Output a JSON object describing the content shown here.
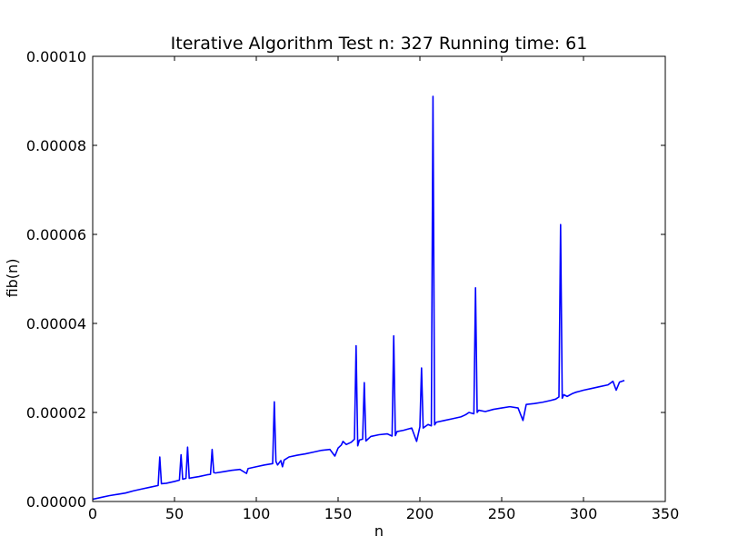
{
  "chart_data": {
    "type": "line",
    "title": "Iterative Algorithm Test n: 327 Running time: 61",
    "xlabel": "n",
    "ylabel": "fib(n)",
    "xlim": [
      0,
      350
    ],
    "ylim": [
      0,
      0.0001
    ],
    "x_ticks": [
      "0",
      "50",
      "100",
      "150",
      "200",
      "250",
      "300",
      "350"
    ],
    "y_ticks": [
      "0.00000",
      "0.00002",
      "0.00004",
      "0.00006",
      "0.00008",
      "0.00010"
    ],
    "grid": false,
    "legend": "none",
    "series": [
      {
        "color": "#0000ff",
        "x": [
          0,
          5,
          10,
          15,
          20,
          25,
          30,
          35,
          40,
          41,
          42,
          45,
          50,
          53,
          54,
          55,
          57,
          58,
          59,
          60,
          65,
          70,
          72,
          73,
          74,
          75,
          80,
          85,
          90,
          94,
          95,
          100,
          105,
          110,
          111,
          112,
          113,
          115,
          116,
          117,
          120,
          125,
          130,
          135,
          140,
          145,
          148,
          150,
          152,
          153,
          155,
          158,
          160,
          161,
          162,
          163,
          165,
          166,
          167,
          170,
          175,
          180,
          183,
          184,
          185,
          186,
          190,
          195,
          198,
          200,
          201,
          202,
          205,
          207,
          208,
          209,
          210,
          215,
          220,
          225,
          228,
          230,
          233,
          234,
          235,
          236,
          240,
          245,
          250,
          255,
          260,
          263,
          265,
          270,
          275,
          280,
          283,
          285,
          286,
          287,
          288,
          290,
          293,
          295,
          300,
          305,
          310,
          315,
          318,
          320,
          322,
          325
        ],
        "y": [
          5e-07,
          9e-07,
          1.3e-06,
          1.6e-06,
          1.9e-06,
          2.4e-06,
          2.8e-06,
          3.2e-06,
          3.6e-06,
          1e-05,
          4e-06,
          4.1e-06,
          4.5e-06,
          4.8e-06,
          1.05e-05,
          5e-06,
          5.2e-06,
          1.22e-05,
          5.2e-06,
          5.3e-06,
          5.6e-06,
          6e-06,
          6.1e-06,
          1.17e-05,
          6.5e-06,
          6.4e-06,
          6.7e-06,
          7e-06,
          7.2e-06,
          6.3e-06,
          7.4e-06,
          7.8e-06,
          8.2e-06,
          8.5e-06,
          2.24e-05,
          9e-06,
          8.2e-06,
          9.2e-06,
          7.8e-06,
          9.3e-06,
          1e-05,
          1.04e-05,
          1.07e-05,
          1.11e-05,
          1.15e-05,
          1.17e-05,
          1.02e-05,
          1.2e-05,
          1.27e-05,
          1.35e-05,
          1.28e-05,
          1.33e-05,
          1.4e-05,
          3.5e-05,
          1.25e-05,
          1.38e-05,
          1.4e-05,
          2.67e-05,
          1.36e-05,
          1.46e-05,
          1.5e-05,
          1.52e-05,
          1.47e-05,
          3.72e-05,
          1.48e-05,
          1.57e-05,
          1.6e-05,
          1.65e-05,
          1.35e-05,
          1.68e-05,
          3e-05,
          1.65e-05,
          1.73e-05,
          1.7e-05,
          9.1e-05,
          1.72e-05,
          1.78e-05,
          1.82e-05,
          1.86e-05,
          1.9e-05,
          1.95e-05,
          2e-05,
          1.97e-05,
          4.8e-05,
          2e-05,
          2.05e-05,
          2.02e-05,
          2.07e-05,
          2.1e-05,
          2.13e-05,
          2.1e-05,
          1.82e-05,
          2.18e-05,
          2.2e-05,
          2.23e-05,
          2.27e-05,
          2.3e-05,
          2.35e-05,
          6.22e-05,
          2.32e-05,
          2.4e-05,
          2.36e-05,
          2.42e-05,
          2.45e-05,
          2.5e-05,
          2.54e-05,
          2.58e-05,
          2.62e-05,
          2.7e-05,
          2.5e-05,
          2.68e-05,
          2.72e-05
        ]
      }
    ]
  }
}
